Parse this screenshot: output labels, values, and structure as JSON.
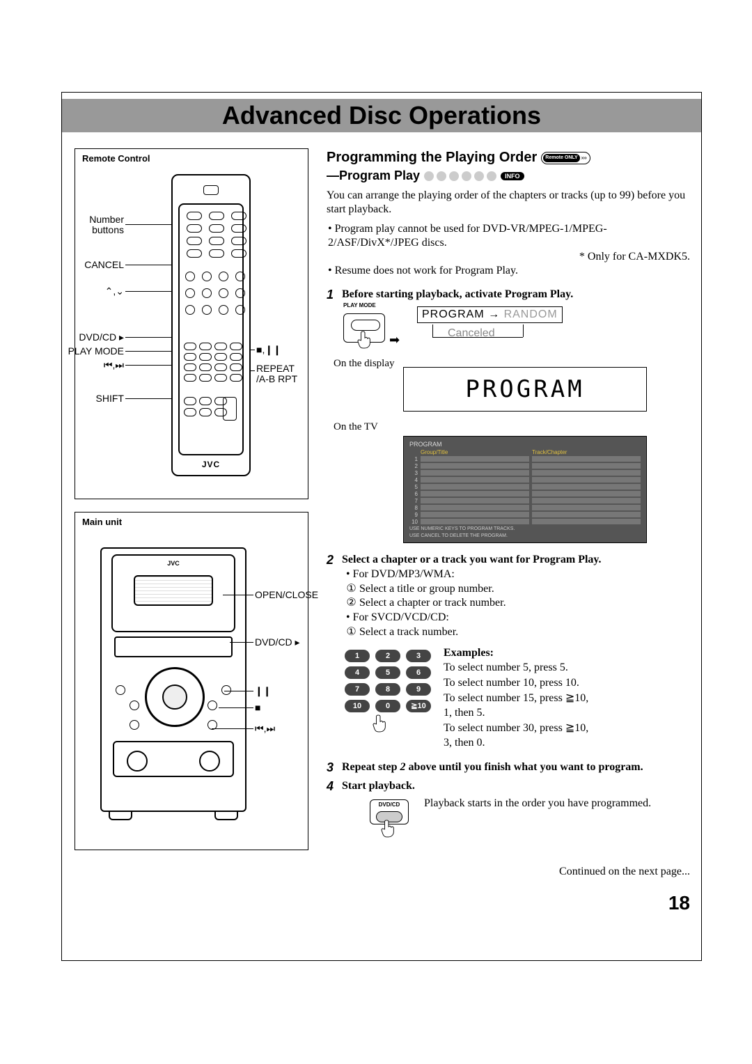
{
  "page": {
    "title": "Advanced Disc Operations",
    "number": "18"
  },
  "leftCol": {
    "remote": {
      "boxTitle": "Remote Control",
      "labels": {
        "numberButtons": "Number\nbuttons",
        "cancel": "CANCEL",
        "upDown": "ℎ,Ⅴ",
        "dvdcd": "DVD/CD ▸",
        "playMode": "PLAY MODE",
        "prevNext": "⏮,⏭",
        "shift": "SHIFT",
        "stopPause": "■,❙❙",
        "repeat": "REPEAT\n/A-B RPT"
      },
      "brand": "JVC"
    },
    "mainUnit": {
      "boxTitle": "Main unit",
      "labels": {
        "openClose": "OPEN/CLOSE",
        "dvdcd": "DVD/CD ▸",
        "pause": "❙❙",
        "stop": "■",
        "prevNext": "⏮,⏭"
      },
      "brand": "JVC"
    }
  },
  "rightCol": {
    "heading": "Programming the Playing Order",
    "remoteOnly": "Remote ONLY",
    "subHeading": "—Program Play",
    "infoBadge": "INFO",
    "intro": "You can arrange the playing order of the chapters or tracks (up to 99) before you start playback.",
    "bullets": [
      "Program play cannot be used for DVD-VR/MPEG-1/MPEG-2/ASF/DivX*/JPEG discs.",
      "Resume does not work for Program Play."
    ],
    "asterisk": "* Only for CA-MXDK5.",
    "step1": {
      "num": "1",
      "text": "Before starting playback, activate Program Play.",
      "playModeLabel": "PLAY MODE",
      "program": "PROGRAM",
      "random": "RANDOM",
      "canceled": "Canceled",
      "onDisplay": "On the display",
      "lcdText": "PROGRAM",
      "onTV": "On the TV",
      "tv": {
        "header": "PROGRAM",
        "col1": "Group/Title",
        "col2": "Track/Chapter",
        "rows": [
          "1",
          "2",
          "3",
          "4",
          "5",
          "6",
          "7",
          "8",
          "9",
          "10"
        ],
        "foot1": "USE NUMERIC KEYS TO PROGRAM TRACKS.",
        "foot2": "USE CANCEL TO DELETE THE PROGRAM."
      }
    },
    "step2": {
      "num": "2",
      "text": "Select a chapter or a track you want for Program Play.",
      "dvd": "• For DVD/MP3/WMA:",
      "dvd1": "Select a title or group number.",
      "dvd2": "Select a chapter or track number.",
      "svcd": "• For SVCD/VCD/CD:",
      "svcd1": "Select a track number.",
      "examplesTitle": "Examples:",
      "ex1": "To select number 5, press 5.",
      "ex2": "To select number 10, press 10.",
      "ex3a": "To select number 15, press ≧10,",
      "ex3b": "1, then 5.",
      "ex4a": "To select number 30, press ≧10,",
      "ex4b": "3, then 0.",
      "keys": [
        "1",
        "2",
        "3",
        "4",
        "5",
        "6",
        "7",
        "8",
        "9",
        "10",
        "0",
        "≧10"
      ]
    },
    "step3": {
      "num": "3",
      "text": "Repeat step 2 above until you finish what you want to program."
    },
    "step4": {
      "num": "4",
      "text": "Start playback.",
      "btnLabel": "DVD/CD",
      "desc": "Playback starts in the order you have programmed."
    },
    "continued": "Continued on the next page..."
  },
  "colors": {
    "titlebar": "#999999",
    "dot": "#cccccc",
    "tvBg": "#555555",
    "tvCell": "#777777",
    "key": "#444444"
  }
}
